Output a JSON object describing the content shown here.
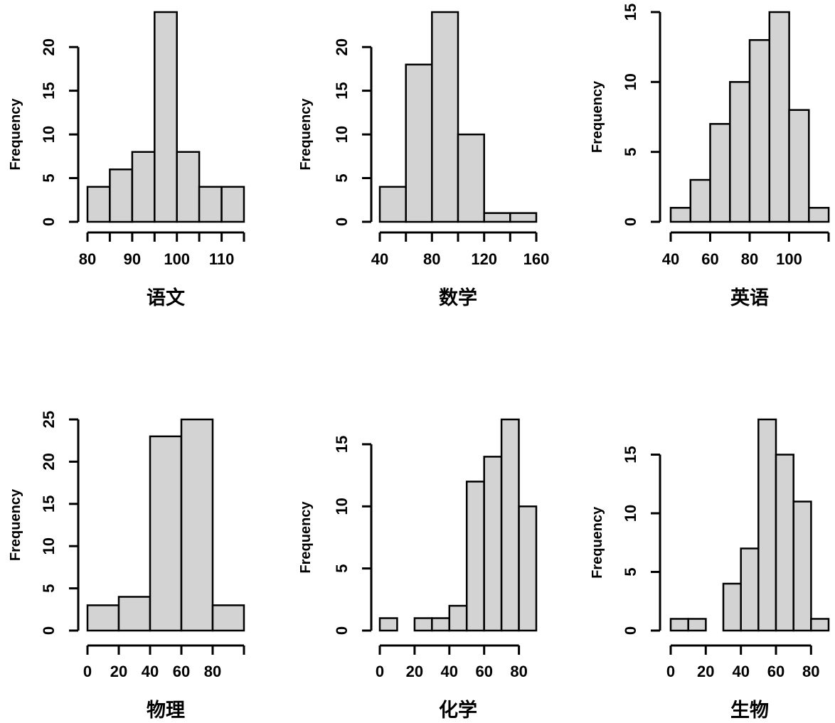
{
  "figure": {
    "background": "#ffffff",
    "bar_fill": "#d3d3d3",
    "bar_stroke": "#000000",
    "axis_color": "#000000",
    "text_color": "#000000",
    "layout": "2 rows x 3 columns of R-style histograms",
    "ylabel_shared": "Frequency"
  },
  "chart_data": [
    {
      "type": "bar",
      "subtype": "histogram",
      "xlabel": "语文",
      "ylabel": "Frequency",
      "breaks": [
        80,
        85,
        90,
        95,
        100,
        105,
        110,
        115
      ],
      "counts": [
        4,
        6,
        8,
        24,
        8,
        4,
        4
      ],
      "ylim": [
        0,
        24
      ],
      "yticks": [
        0,
        5,
        10,
        15,
        20
      ],
      "xticks": [
        80,
        85,
        90,
        95,
        100,
        105,
        110,
        115
      ],
      "xtick_labels": [
        "80",
        "",
        "90",
        "",
        "100",
        "",
        "110",
        ""
      ],
      "xaxis_range": [
        80,
        115
      ],
      "grid": false
    },
    {
      "type": "bar",
      "subtype": "histogram",
      "xlabel": "数学",
      "ylabel": "Frequency",
      "breaks": [
        40,
        60,
        80,
        100,
        120,
        140,
        160
      ],
      "counts": [
        4,
        18,
        24,
        10,
        1,
        1
      ],
      "ylim": [
        0,
        24
      ],
      "yticks": [
        0,
        5,
        10,
        15,
        20
      ],
      "xticks": [
        40,
        60,
        80,
        100,
        120,
        140,
        160
      ],
      "xtick_labels": [
        "40",
        "",
        "80",
        "",
        "120",
        "",
        "160"
      ],
      "xaxis_range": [
        40,
        160
      ],
      "grid": false
    },
    {
      "type": "bar",
      "subtype": "histogram",
      "xlabel": "英语",
      "ylabel": "Frequency",
      "breaks": [
        40,
        50,
        60,
        70,
        80,
        90,
        100,
        110,
        120
      ],
      "counts": [
        1,
        3,
        7,
        10,
        13,
        15,
        8,
        1
      ],
      "ylim": [
        0,
        15
      ],
      "yticks": [
        0,
        5,
        10,
        15
      ],
      "xticks": [
        40,
        60,
        80,
        100,
        120
      ],
      "xtick_labels": [
        "40",
        "60",
        "80",
        "100",
        ""
      ],
      "xaxis_range": [
        40,
        120
      ],
      "grid": false
    },
    {
      "type": "bar",
      "subtype": "histogram",
      "xlabel": "物理",
      "ylabel": "Frequency",
      "breaks": [
        0,
        20,
        40,
        60,
        80,
        100
      ],
      "counts": [
        3,
        4,
        23,
        25,
        3
      ],
      "ylim": [
        0,
        25
      ],
      "yticks": [
        0,
        5,
        10,
        15,
        20,
        25
      ],
      "xticks": [
        0,
        20,
        40,
        60,
        80,
        100
      ],
      "xtick_labels": [
        "0",
        "20",
        "40",
        "60",
        "80",
        ""
      ],
      "xaxis_range": [
        0,
        100
      ],
      "grid": false
    },
    {
      "type": "bar",
      "subtype": "histogram",
      "xlabel": "化学",
      "ylabel": "Frequency",
      "breaks": [
        0,
        10,
        20,
        30,
        40,
        50,
        60,
        70,
        80,
        90
      ],
      "counts": [
        1,
        0,
        1,
        1,
        2,
        12,
        14,
        17,
        10
      ],
      "ylim": [
        0,
        17
      ],
      "yticks": [
        0,
        5,
        10,
        15
      ],
      "xticks": [
        0,
        20,
        40,
        60,
        80
      ],
      "xtick_labels": [
        "0",
        "20",
        "40",
        "60",
        "80"
      ],
      "xaxis_range": [
        0,
        80
      ],
      "grid": false
    },
    {
      "type": "bar",
      "subtype": "histogram",
      "xlabel": "生物",
      "ylabel": "Frequency",
      "breaks": [
        0,
        10,
        20,
        30,
        40,
        50,
        60,
        70,
        80,
        90
      ],
      "counts": [
        1,
        1,
        0,
        4,
        7,
        18,
        15,
        11,
        1
      ],
      "ylim": [
        0,
        18
      ],
      "yticks": [
        0,
        5,
        10,
        15
      ],
      "xticks": [
        0,
        20,
        40,
        60,
        80
      ],
      "xtick_labels": [
        "0",
        "20",
        "40",
        "60",
        "80"
      ],
      "xaxis_range": [
        0,
        80
      ],
      "grid": false
    }
  ]
}
